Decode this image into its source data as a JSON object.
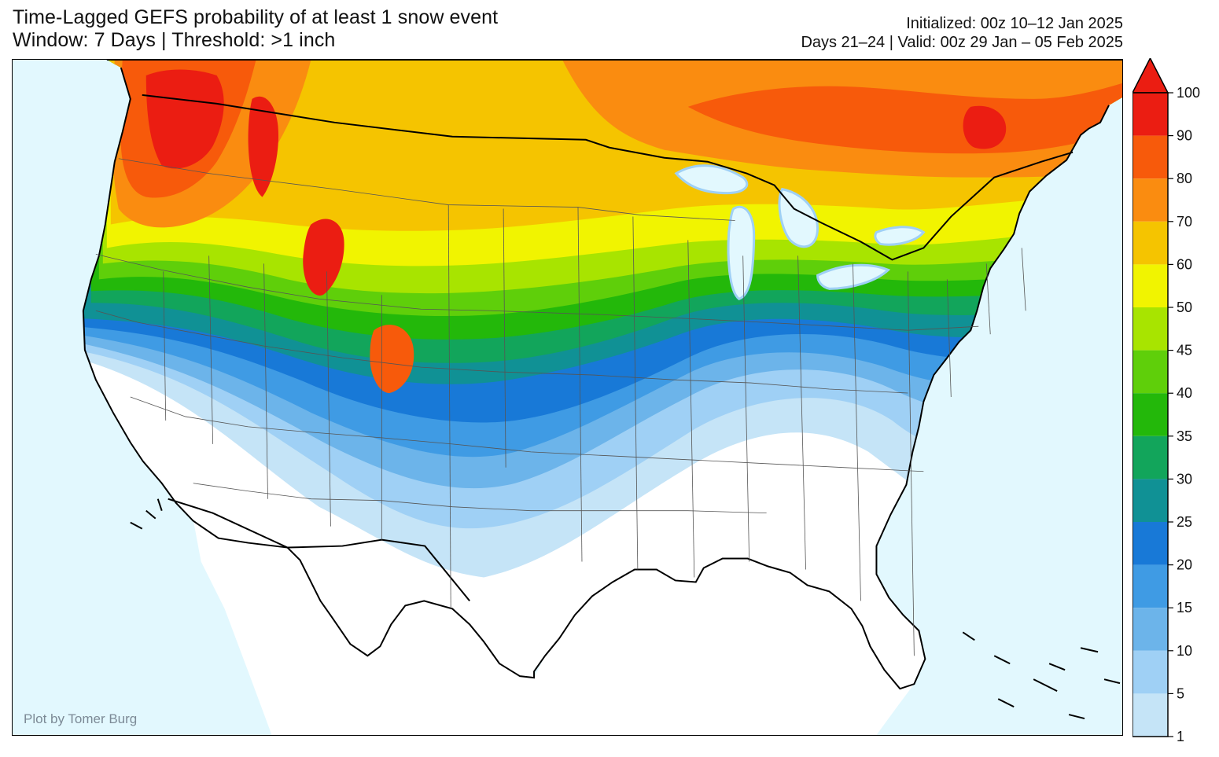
{
  "title": {
    "line1": "Time-Lagged GEFS probability of at least 1 snow event",
    "line2": "Window: 7 Days | Threshold: >1 inch"
  },
  "subtitle": {
    "line1": "Initialized: 00z 10–12 Jan 2025",
    "line2": "Days 21–24 | Valid: 00z 29 Jan – 05 Feb 2025"
  },
  "credit": "Plot by Tomer Burg",
  "colorbar": {
    "extend": "max",
    "ticks": [
      "100",
      "90",
      "80",
      "70",
      "60",
      "50",
      "45",
      "40",
      "35",
      "30",
      "25",
      "20",
      "15",
      "10",
      "5",
      "1"
    ],
    "colors": [
      "#eb1d12",
      "#f75a0b",
      "#fa8c10",
      "#f5c400",
      "#f1f400",
      "#a8e400",
      "#5fcf0a",
      "#23b80a",
      "#12a55b",
      "#109195",
      "#1879d7",
      "#3f9be4",
      "#6cb4ea",
      "#9fd0f5",
      "#c5e4f7"
    ]
  },
  "map_data": {
    "region": "Contiguous United States",
    "variable": "probability of at least 1 snow event",
    "units": "percent",
    "regions": {
      "pacific_northwest_cascades": "70-100",
      "idaho_montana_rockies": "60-90",
      "northern_plains": "50-80",
      "upper_midwest_great_lakes": "60-80",
      "new_england": "60-80",
      "central_plains": "35-50",
      "ohio_valley": "20-35",
      "southern_plains": "5-20",
      "gulf_coast_southeast": "1-5",
      "southwest": "1-20"
    }
  }
}
